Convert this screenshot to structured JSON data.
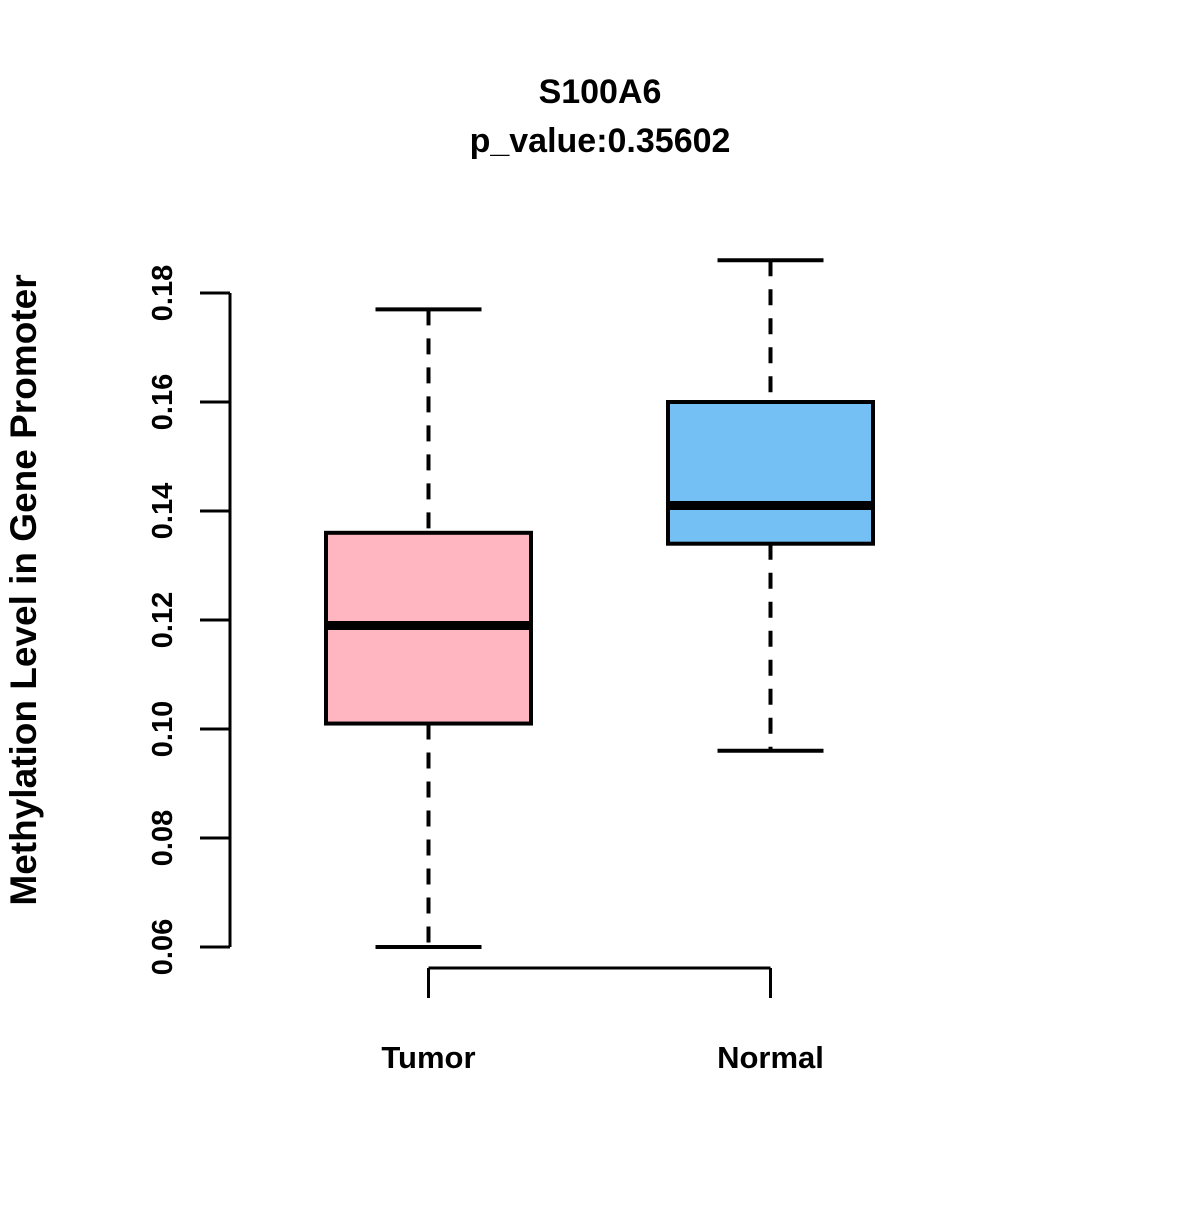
{
  "figure": {
    "background_color": "#FFFFFF",
    "foreground_color": "#000000"
  },
  "chart_data": {
    "type": "boxplot",
    "title": "S100A6",
    "subtitle": "p_value:0.35602",
    "gene": "S100A6",
    "p_value": 0.35602,
    "ylabel": "Methylation Level in Gene Promoter",
    "xlabel": "",
    "ylim": [
      0.06,
      0.18
    ],
    "yticks": [
      0.06,
      0.08,
      0.1,
      0.12,
      0.14,
      0.16,
      0.18
    ],
    "ytick_labels": [
      "0.06",
      "0.08",
      "0.10",
      "0.12",
      "0.14",
      "0.16",
      "0.18"
    ],
    "grid": false,
    "legend": "none",
    "whisker_style": "dashed",
    "categories": [
      "Tumor",
      "Normal"
    ],
    "series": [
      {
        "name": "Tumor",
        "box_color": "#FFB6C1",
        "border_color": "#000000",
        "median_color": "#000000",
        "whisker_low": 0.06,
        "q1": 0.101,
        "median": 0.119,
        "q3": 0.136,
        "whisker_high": 0.177
      },
      {
        "name": "Normal",
        "box_color": "#74BFF4",
        "border_color": "#000000",
        "median_color": "#000000",
        "whisker_low": 0.096,
        "q1": 0.134,
        "median": 0.141,
        "q3": 0.16,
        "whisker_high": 0.186
      }
    ]
  }
}
